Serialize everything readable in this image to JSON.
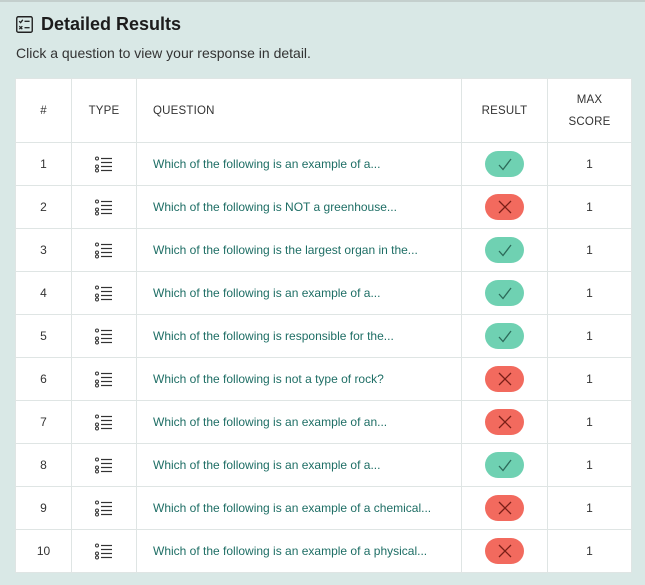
{
  "header": {
    "title": "Detailed Results",
    "subtitle": "Click a question to view your response in detail."
  },
  "table": {
    "columns": {
      "number": "#",
      "type": "TYPE",
      "question": "QUESTION",
      "result": "RESULT",
      "max_score_line1": "MAX",
      "max_score_line2": "SCORE"
    },
    "rows": [
      {
        "number": "1",
        "type_icon": "list-icon",
        "question": "Which of the following is an example of a...",
        "result": "correct",
        "max_score": "1"
      },
      {
        "number": "2",
        "type_icon": "list-icon",
        "question": "Which of the following is NOT a greenhouse...",
        "result": "incorrect",
        "max_score": "1"
      },
      {
        "number": "3",
        "type_icon": "list-icon",
        "question": "Which of the following is the largest organ in the...",
        "result": "correct",
        "max_score": "1"
      },
      {
        "number": "4",
        "type_icon": "list-icon",
        "question": "Which of the following is an example of a...",
        "result": "correct",
        "max_score": "1"
      },
      {
        "number": "5",
        "type_icon": "list-icon",
        "question": "Which of the following is responsible for the...",
        "result": "correct",
        "max_score": "1"
      },
      {
        "number": "6",
        "type_icon": "list-icon",
        "question": "Which of the following is not a type of rock?",
        "result": "incorrect",
        "max_score": "1"
      },
      {
        "number": "7",
        "type_icon": "list-icon",
        "question": "Which of the following is an example of an...",
        "result": "incorrect",
        "max_score": "1"
      },
      {
        "number": "8",
        "type_icon": "list-icon",
        "question": "Which of the following is an example of a...",
        "result": "correct",
        "max_score": "1"
      },
      {
        "number": "9",
        "type_icon": "list-icon",
        "question": "Which of the following is an example of a chemical...",
        "result": "incorrect",
        "max_score": "1"
      },
      {
        "number": "10",
        "type_icon": "list-icon",
        "question": "Which of the following is an example of a physical...",
        "result": "incorrect",
        "max_score": "1"
      }
    ]
  },
  "colors": {
    "background": "#d9e8e6",
    "correct": "#6fd1b2",
    "incorrect": "#f26a5e",
    "link": "#1e6e65"
  }
}
